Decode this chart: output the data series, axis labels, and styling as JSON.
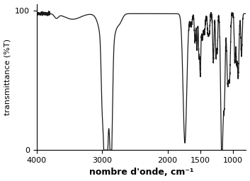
{
  "xlabel": "nombre d'onde, cm⁻¹",
  "ylabel": "transmittance (%T)",
  "xlim_left": 4000,
  "xlim_right": 800,
  "ylim": [
    0,
    105
  ],
  "yticks": [
    0,
    100
  ],
  "xticks": [
    4000,
    3000,
    2000,
    1500,
    1000
  ],
  "background_color": "#ffffff",
  "line_color": "#1a1a1a",
  "line_width": 0.9,
  "xlabel_fontsize": 9,
  "ylabel_fontsize": 8,
  "tick_fontsize": 8,
  "xlabel_fontweight": "bold"
}
